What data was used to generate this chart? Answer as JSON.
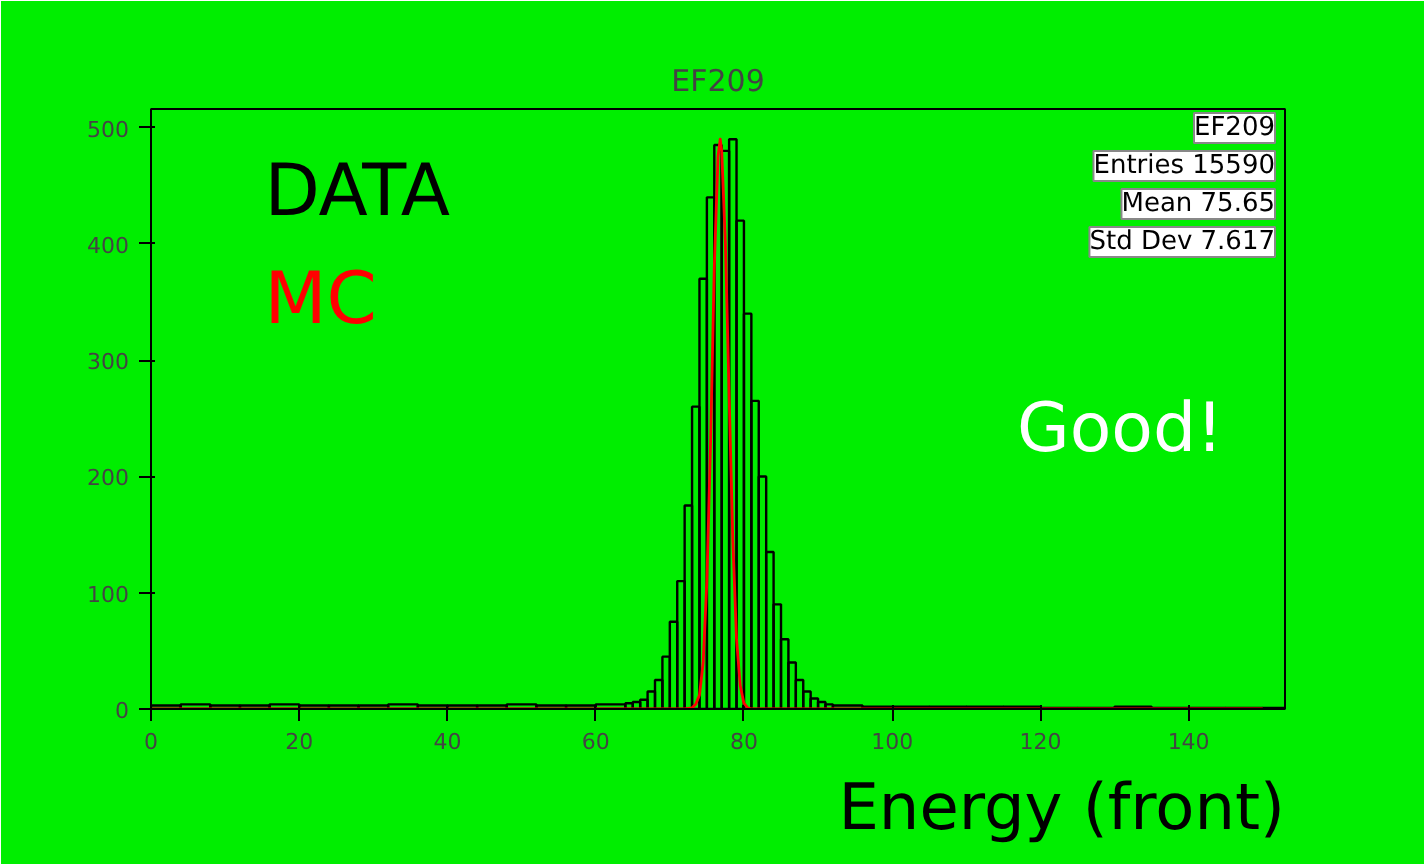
{
  "chart_data": {
    "type": "histogram",
    "title": "EF209",
    "xlabel": "Energy (front)",
    "xlim": [
      0,
      153
    ],
    "ylim": [
      0,
      516
    ],
    "xticks": [
      0,
      20,
      40,
      60,
      80,
      100,
      120,
      140
    ],
    "yticks": [
      0,
      100,
      200,
      300,
      400,
      500
    ],
    "grid": false,
    "legend": "top left",
    "series": [
      {
        "name": "DATA",
        "type": "histogram",
        "color": "#000000",
        "bins": [
          0,
          4,
          8,
          12,
          16,
          20,
          24,
          28,
          32,
          36,
          40,
          44,
          48,
          52,
          56,
          60,
          64,
          65,
          66,
          67,
          68,
          69,
          70,
          71,
          72,
          73,
          74,
          75,
          76,
          77,
          78,
          79,
          80,
          81,
          82,
          83,
          84,
          85,
          86,
          87,
          88,
          89,
          90,
          91,
          92,
          96,
          100,
          105,
          110,
          115,
          120,
          125,
          130,
          135,
          140,
          145,
          150,
          153
        ],
        "values": [
          3,
          4,
          3,
          3,
          4,
          3,
          3,
          3,
          4,
          3,
          3,
          3,
          4,
          3,
          3,
          4,
          5,
          6,
          8,
          15,
          25,
          45,
          75,
          110,
          175,
          260,
          370,
          440,
          485,
          480,
          490,
          420,
          340,
          265,
          200,
          135,
          90,
          60,
          40,
          25,
          15,
          9,
          6,
          4,
          3,
          2,
          2,
          2,
          2,
          2,
          1,
          1,
          2,
          1,
          1,
          1,
          1
        ]
      },
      {
        "name": "MC",
        "type": "line",
        "color": "#ff0000",
        "x": [
          0,
          72,
          73,
          73.5,
          74,
          74.5,
          75,
          75.5,
          76,
          76.5,
          76.8,
          77,
          77.5,
          78,
          78.5,
          79,
          79.5,
          80,
          80.5,
          81,
          150
        ],
        "values": [
          0,
          0,
          1,
          4,
          12,
          40,
          110,
          230,
          380,
          475,
          490,
          480,
          400,
          270,
          145,
          60,
          20,
          5,
          1,
          0,
          0
        ]
      }
    ],
    "annotations": [
      "Good!",
      "EF209",
      "Entries 15590",
      "Mean 75.65",
      "Std Dev 7.617"
    ]
  }
}
